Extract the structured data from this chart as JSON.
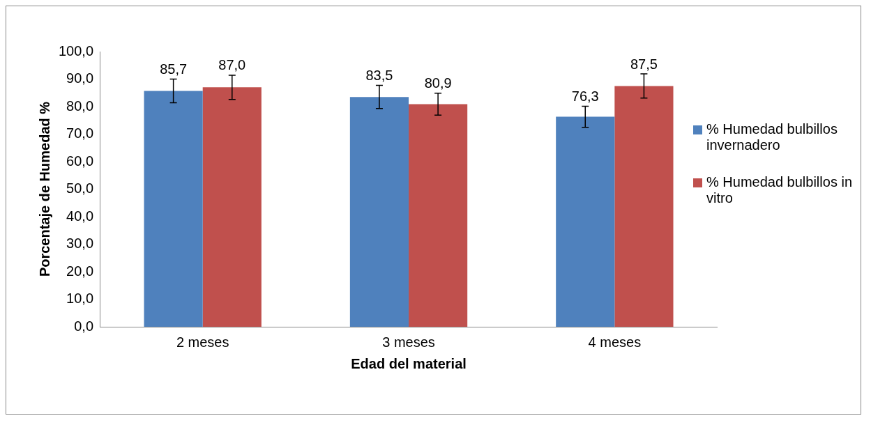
{
  "chart_data": {
    "type": "bar",
    "xlabel": "Edad del material",
    "ylabel": "Porcentaje de Humedad %",
    "categories": [
      "2 meses",
      "3 meses",
      "4 meses"
    ],
    "series": [
      {
        "name": "% Humedad bulbillos invernadero",
        "color": "#4f81bd",
        "values": [
          85.7,
          83.5,
          76.3
        ],
        "errors": [
          4.3,
          4.2,
          3.8
        ],
        "value_labels": [
          "85,7",
          "83,5",
          "76,3"
        ]
      },
      {
        "name": "% Humedad bulbillos in vitro",
        "color": "#c0504d",
        "values": [
          87.0,
          80.9,
          87.5
        ],
        "errors": [
          4.4,
          4.0,
          4.4
        ],
        "value_labels": [
          "87,0",
          "80,9",
          "87,5"
        ]
      }
    ],
    "ylim": [
      0,
      100
    ],
    "yticks": [
      {
        "value": 0,
        "label": "0,0"
      },
      {
        "value": 10,
        "label": "10,0"
      },
      {
        "value": 20,
        "label": "20,0"
      },
      {
        "value": 30,
        "label": "30,0"
      },
      {
        "value": 40,
        "label": "40,0"
      },
      {
        "value": 50,
        "label": "50,0"
      },
      {
        "value": 60,
        "label": "60,0"
      },
      {
        "value": 70,
        "label": "70,0"
      },
      {
        "value": 80,
        "label": "80,0"
      },
      {
        "value": 90,
        "label": "90,0"
      },
      {
        "value": 100,
        "label": "100,0"
      }
    ],
    "grid": false,
    "legend": "right"
  }
}
